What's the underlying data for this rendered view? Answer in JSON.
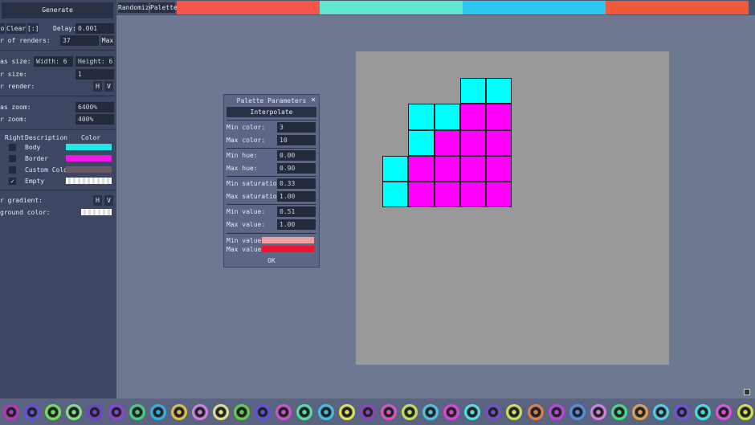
{
  "left": {
    "generate": "Generate",
    "stop": "o",
    "clear": "Clear",
    "clear_icon": "[:]",
    "delay_label": "Delay:",
    "delay": "0.001",
    "renders_label": "r of renders:",
    "renders": "37",
    "max": "Max",
    "canvas_size_label": "as size:",
    "width": "Width: 6",
    "height": "Height: 6",
    "sprite_size_label": "r size:",
    "sprite_size": "1",
    "render_label": "r render:",
    "h": "H",
    "v": "V",
    "canvas_zoom_label": "as zoom:",
    "canvas_zoom": "6400%",
    "sprite_zoom_label": "r zoom:",
    "sprite_zoom": "400%",
    "table": {
      "headers": [
        "Right",
        "Description",
        "Color"
      ],
      "rows": [
        {
          "checked": false,
          "desc": "Body",
          "color": "#22e8e8"
        },
        {
          "checked": false,
          "desc": "Border",
          "color": "#f016e8"
        },
        {
          "checked": false,
          "desc": "Custom Color",
          "color": "#6a5a66"
        },
        {
          "checked": true,
          "desc": "Empty",
          "color": "checker"
        }
      ]
    },
    "gradient_label": "r gradient:",
    "bg_label": "ground color:"
  },
  "top": {
    "randomize": "Randomize",
    "palette": "Palette",
    "palette_colors": [
      "#f4564a",
      "#5ee8d2",
      "#2bc8f0",
      "#f05a3a"
    ]
  },
  "canvas": {
    "grid": [
      "...cc",
      ".ccmm",
      ".cmmm",
      "cmmmm",
      "cmmmm"
    ],
    "colors": {
      "c": "#00ffff",
      "m": "#ff00ff"
    }
  },
  "dialog": {
    "title": "Palette Parameters",
    "close": "×",
    "mode": "Interpolate",
    "fields": [
      [
        "Min color:",
        "3"
      ],
      [
        "Max color:",
        "10"
      ],
      [
        "Min hue:",
        "0.00"
      ],
      [
        "Max hue:",
        "0.90"
      ],
      [
        "Min saturation:",
        "0.33"
      ],
      [
        "Max saturation:",
        "1.00"
      ],
      [
        "Min value:",
        "0.51"
      ],
      [
        "Max value:",
        "1.00"
      ]
    ],
    "min_values": "Min values:",
    "max_values": "Max values:",
    "min_color": "#f0a0a4",
    "max_color": "#f01430",
    "ok": "OK"
  },
  "sprites": [
    "#c030c0",
    "#6050e0",
    "#70e050",
    "#80e080",
    "#7040d0",
    "#9040e0",
    "#40d080",
    "#30b0e0",
    "#e0c040",
    "#d080e0",
    "#e0e080",
    "#60d040",
    "#6050e0",
    "#d050d0",
    "#50e0a0",
    "#40c0e0",
    "#e0e050",
    "#9040c0",
    "#e050c0",
    "#c0e050",
    "#50c0e0",
    "#e040e0",
    "#50e0e0",
    "#7050d0",
    "#d0e050",
    "#e08040",
    "#c040e0",
    "#5090e0",
    "#d080e0",
    "#40e080",
    "#e0a050",
    "#50d0e0",
    "#7050e0",
    "#40e0e0",
    "#e050e0",
    "#d0e040"
  ]
}
